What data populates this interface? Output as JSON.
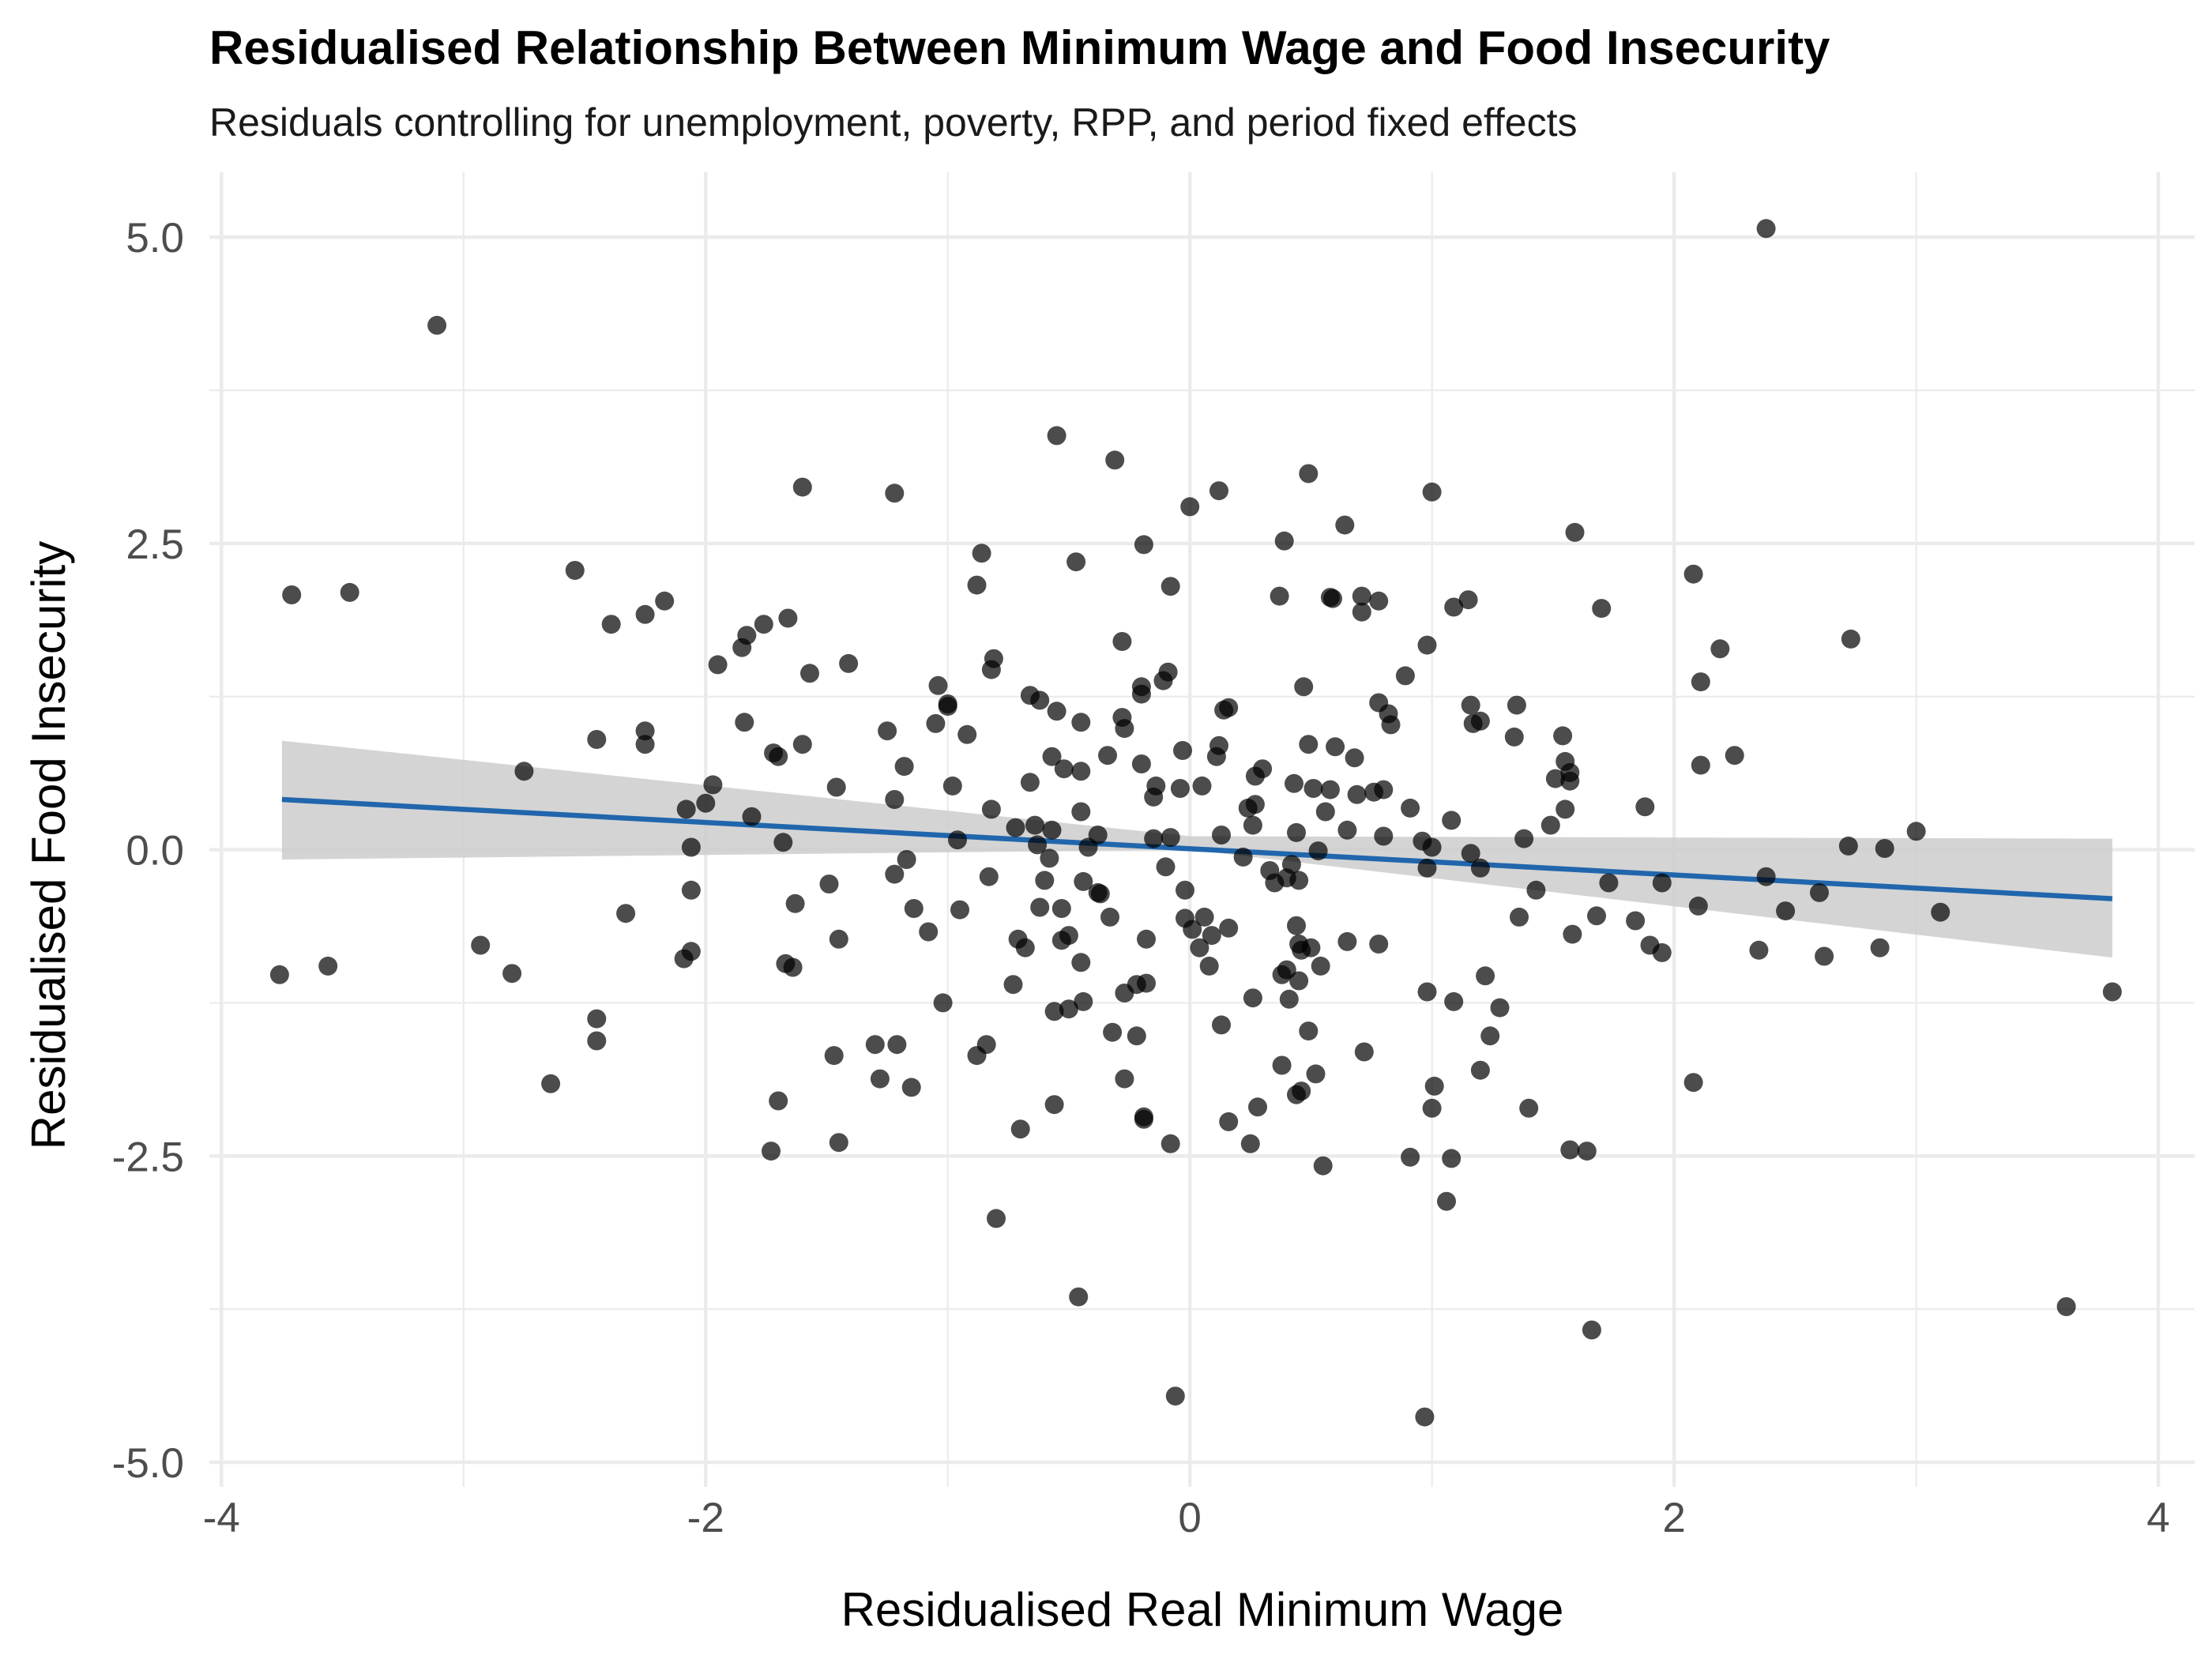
{
  "chart_data": {
    "type": "scatter",
    "title": "Residualised Relationship Between Minimum Wage and Food Insecurity",
    "subtitle": "Residuals controlling for unemployment, poverty, RPP, and period fixed effects",
    "xlabel": "Residualised Real Minimum Wage",
    "ylabel": "Residualised Food Insecurity",
    "xlim": [
      -4.05,
      4.15
    ],
    "ylim": [
      -5.2,
      5.53
    ],
    "x_ticks": [
      -4,
      -2,
      0,
      2,
      4
    ],
    "x_tick_labels": [
      "-4",
      "-2",
      "0",
      "2",
      "4"
    ],
    "y_ticks": [
      -5,
      -2.5,
      0,
      2.5,
      5
    ],
    "y_tick_labels": [
      "-5.0",
      "-2.5",
      "0.0",
      "2.5",
      "5.0"
    ],
    "x_minor": [
      -3,
      -1,
      1,
      3
    ],
    "y_minor": [
      -3.75,
      -1.25,
      1.25,
      3.75
    ],
    "point_color": "#000000",
    "point_opacity": 0.7,
    "fit_line": {
      "x": [
        -3.75,
        3.81
      ],
      "y": [
        0.41,
        -0.4
      ],
      "color": "#2166ac"
    },
    "ci_band": {
      "x": [
        -3.75,
        0.0,
        3.81
      ],
      "upper": [
        0.89,
        0.11,
        0.09
      ],
      "lower": [
        -0.08,
        0.0,
        -0.88
      ],
      "color": "#cccccc"
    },
    "points": [
      [
        2.38,
        5.07
      ],
      [
        -3.11,
        4.28
      ],
      [
        -0.55,
        3.38
      ],
      [
        -0.31,
        3.18
      ],
      [
        0.49,
        3.07
      ],
      [
        -1.6,
        2.96
      ],
      [
        -1.22,
        2.91
      ],
      [
        0.12,
        2.93
      ],
      [
        1.0,
        2.92
      ],
      [
        0.0,
        2.8
      ],
      [
        0.64,
        2.65
      ],
      [
        1.59,
        2.59
      ],
      [
        -0.19,
        2.49
      ],
      [
        0.39,
        2.52
      ],
      [
        -0.86,
        2.42
      ],
      [
        -0.47,
        2.35
      ],
      [
        -2.54,
        2.28
      ],
      [
        2.08,
        2.25
      ],
      [
        -3.71,
        2.08
      ],
      [
        -3.47,
        2.1
      ],
      [
        -0.88,
        2.16
      ],
      [
        -0.08,
        2.15
      ],
      [
        0.37,
        2.07
      ],
      [
        0.58,
        2.06
      ],
      [
        0.59,
        2.05
      ],
      [
        0.71,
        2.07
      ],
      [
        0.78,
        2.03
      ],
      [
        1.15,
        2.04
      ],
      [
        1.09,
        1.98
      ],
      [
        1.7,
        1.97
      ],
      [
        -2.17,
        2.03
      ],
      [
        -2.25,
        1.92
      ],
      [
        -2.39,
        1.84
      ],
      [
        -1.76,
        1.84
      ],
      [
        -1.66,
        1.89
      ],
      [
        0.71,
        1.94
      ],
      [
        -0.28,
        1.7
      ],
      [
        -1.83,
        1.75
      ],
      [
        -1.85,
        1.65
      ],
      [
        0.98,
        1.67
      ],
      [
        2.73,
        1.72
      ],
      [
        2.19,
        1.64
      ],
      [
        -0.81,
        1.56
      ],
      [
        -1.41,
        1.52
      ],
      [
        -1.95,
        1.51
      ],
      [
        -0.82,
        1.47
      ],
      [
        -1.57,
        1.44
      ],
      [
        -0.09,
        1.45
      ],
      [
        -0.11,
        1.38
      ],
      [
        0.89,
        1.42
      ],
      [
        2.11,
        1.37
      ],
      [
        -1.04,
        1.34
      ],
      [
        -0.2,
        1.33
      ],
      [
        -0.2,
        1.27
      ],
      [
        0.47,
        1.33
      ],
      [
        -0.66,
        1.26
      ],
      [
        -0.62,
        1.22
      ],
      [
        -1.0,
        1.19
      ],
      [
        -1.0,
        1.17
      ],
      [
        0.16,
        1.16
      ],
      [
        0.78,
        1.2
      ],
      [
        0.82,
        1.11
      ],
      [
        1.16,
        1.18
      ],
      [
        1.35,
        1.18
      ],
      [
        -0.55,
        1.13
      ],
      [
        0.14,
        1.14
      ],
      [
        -0.28,
        1.08
      ],
      [
        -0.45,
        1.04
      ],
      [
        -1.05,
        1.03
      ],
      [
        -0.27,
        0.99
      ],
      [
        -1.84,
        1.04
      ],
      [
        0.83,
        1.02
      ],
      [
        1.2,
        1.05
      ],
      [
        1.17,
        1.03
      ],
      [
        -0.92,
        0.94
      ],
      [
        -1.25,
        0.97
      ],
      [
        -2.25,
        0.97
      ],
      [
        -2.45,
        0.9
      ],
      [
        -2.25,
        0.86
      ],
      [
        -1.6,
        0.86
      ],
      [
        0.12,
        0.85
      ],
      [
        0.49,
        0.86
      ],
      [
        0.6,
        0.84
      ],
      [
        -1.72,
        0.79
      ],
      [
        -1.7,
        0.76
      ],
      [
        -0.57,
        0.76
      ],
      [
        -0.03,
        0.81
      ],
      [
        0.68,
        0.75
      ],
      [
        1.34,
        0.92
      ],
      [
        1.54,
        0.93
      ],
      [
        2.25,
        0.77
      ],
      [
        -0.34,
        0.77
      ],
      [
        -0.52,
        0.66
      ],
      [
        -0.45,
        0.64
      ],
      [
        -0.2,
        0.7
      ],
      [
        0.11,
        0.76
      ],
      [
        0.27,
        0.6
      ],
      [
        0.3,
        0.66
      ],
      [
        -1.18,
        0.68
      ],
      [
        2.11,
        0.69
      ],
      [
        1.55,
        0.72
      ],
      [
        1.57,
        0.63
      ],
      [
        -2.75,
        0.64
      ],
      [
        -1.97,
        0.53
      ],
      [
        -0.98,
        0.52
      ],
      [
        -0.66,
        0.55
      ],
      [
        -0.14,
        0.52
      ],
      [
        -0.15,
        0.43
      ],
      [
        -0.04,
        0.5
      ],
      [
        0.05,
        0.52
      ],
      [
        0.43,
        0.54
      ],
      [
        0.51,
        0.5
      ],
      [
        0.58,
        0.49
      ],
      [
        0.76,
        0.47
      ],
      [
        0.8,
        0.49
      ],
      [
        0.69,
        0.45
      ],
      [
        1.51,
        0.58
      ],
      [
        1.57,
        0.56
      ],
      [
        -1.22,
        0.41
      ],
      [
        -1.46,
        0.51
      ],
      [
        -2.0,
        0.38
      ],
      [
        -2.08,
        0.33
      ],
      [
        -1.81,
        0.27
      ],
      [
        0.27,
        0.37
      ],
      [
        0.24,
        0.34
      ],
      [
        0.56,
        0.31
      ],
      [
        0.91,
        0.34
      ],
      [
        1.88,
        0.35
      ],
      [
        1.55,
        0.33
      ],
      [
        -0.45,
        0.31
      ],
      [
        -0.82,
        0.33
      ],
      [
        -0.38,
        0.12
      ],
      [
        0.13,
        0.12
      ],
      [
        -0.57,
        0.16
      ],
      [
        -0.64,
        0.2
      ],
      [
        -0.72,
        0.18
      ],
      [
        -1.68,
        0.06
      ],
      [
        -0.96,
        0.08
      ],
      [
        -0.08,
        0.1
      ],
      [
        -0.15,
        0.09
      ],
      [
        0.26,
        0.2
      ],
      [
        0.44,
        0.14
      ],
      [
        0.65,
        0.16
      ],
      [
        0.8,
        0.11
      ],
      [
        0.96,
        0.07
      ],
      [
        1.0,
        0.02
      ],
      [
        1.08,
        0.24
      ],
      [
        1.38,
        0.09
      ],
      [
        1.49,
        0.2
      ],
      [
        2.72,
        0.03
      ],
      [
        2.87,
        0.01
      ],
      [
        3.0,
        0.15
      ],
      [
        -2.06,
        0.02
      ],
      [
        -1.17,
        -0.08
      ],
      [
        -0.58,
        -0.07
      ],
      [
        -0.63,
        0.04
      ],
      [
        -0.42,
        0.02
      ],
      [
        0.22,
        -0.06
      ],
      [
        0.42,
        -0.12
      ],
      [
        0.53,
        -0.01
      ],
      [
        0.98,
        -0.15
      ],
      [
        1.16,
        -0.03
      ],
      [
        1.2,
        -0.15
      ],
      [
        -1.22,
        -0.2
      ],
      [
        -0.1,
        -0.14
      ],
      [
        0.33,
        -0.17
      ],
      [
        0.4,
        -0.23
      ],
      [
        0.35,
        -0.27
      ],
      [
        0.45,
        -0.25
      ],
      [
        -0.83,
        -0.22
      ],
      [
        -0.6,
        -0.25
      ],
      [
        -0.44,
        -0.26
      ],
      [
        -0.38,
        -0.35
      ],
      [
        -0.37,
        -0.36
      ],
      [
        -0.33,
        -0.55
      ],
      [
        -0.02,
        -0.33
      ],
      [
        -0.02,
        -0.56
      ],
      [
        0.06,
        -0.55
      ],
      [
        1.43,
        -0.33
      ],
      [
        1.73,
        -0.27
      ],
      [
        1.95,
        -0.27
      ],
      [
        2.38,
        -0.22
      ],
      [
        2.6,
        -0.35
      ],
      [
        1.36,
        -0.55
      ],
      [
        1.58,
        -0.69
      ],
      [
        1.68,
        -0.54
      ],
      [
        1.84,
        -0.58
      ],
      [
        2.1,
        -0.46
      ],
      [
        2.46,
        -0.5
      ],
      [
        3.1,
        -0.51
      ],
      [
        -2.06,
        -0.33
      ],
      [
        -1.49,
        -0.28
      ],
      [
        -1.63,
        -0.44
      ],
      [
        -1.14,
        -0.48
      ],
      [
        -0.95,
        -0.49
      ],
      [
        -2.33,
        -0.52
      ],
      [
        -1.08,
        -0.67
      ],
      [
        -0.71,
        -0.73
      ],
      [
        -0.68,
        -0.8
      ],
      [
        -0.62,
        -0.47
      ],
      [
        -0.53,
        -0.48
      ],
      [
        -0.5,
        -0.7
      ],
      [
        -0.53,
        -0.74
      ],
      [
        -0.18,
        -0.73
      ],
      [
        0.01,
        -0.65
      ],
      [
        0.09,
        -0.7
      ],
      [
        0.16,
        -0.64
      ],
      [
        0.44,
        -0.62
      ],
      [
        0.45,
        -0.77
      ],
      [
        0.46,
        -0.82
      ],
      [
        0.5,
        -0.8
      ],
      [
        0.65,
        -0.75
      ],
      [
        0.78,
        -0.77
      ],
      [
        1.9,
        -0.78
      ],
      [
        1.95,
        -0.84
      ],
      [
        2.35,
        -0.82
      ],
      [
        2.62,
        -0.87
      ],
      [
        2.85,
        -0.8
      ],
      [
        -1.45,
        -0.73
      ],
      [
        -2.06,
        -0.83
      ],
      [
        -2.09,
        -0.89
      ],
      [
        -1.67,
        -0.93
      ],
      [
        -1.64,
        -0.96
      ],
      [
        -2.93,
        -0.78
      ],
      [
        -3.56,
        -0.95
      ],
      [
        -3.76,
        -1.02
      ],
      [
        -2.8,
        -1.01
      ],
      [
        0.54,
        -0.95
      ],
      [
        0.4,
        -0.98
      ],
      [
        0.38,
        -1.02
      ],
      [
        0.45,
        -1.07
      ],
      [
        0.08,
        -0.95
      ],
      [
        0.04,
        -0.8
      ],
      [
        -0.45,
        -0.92
      ],
      [
        -0.73,
        -1.1
      ],
      [
        -0.18,
        -1.09
      ],
      [
        -0.22,
        -1.1
      ],
      [
        -0.27,
        -1.17
      ],
      [
        0.26,
        -1.21
      ],
      [
        -1.02,
        -1.25
      ],
      [
        -0.44,
        -1.24
      ],
      [
        -0.56,
        -1.32
      ],
      [
        -0.5,
        -1.3
      ],
      [
        0.41,
        -1.22
      ],
      [
        0.98,
        -1.16
      ],
      [
        1.09,
        -1.24
      ],
      [
        1.22,
        -1.03
      ],
      [
        1.28,
        -1.29
      ],
      [
        3.81,
        -1.16
      ],
      [
        -2.45,
        -1.38
      ],
      [
        -2.45,
        -1.56
      ],
      [
        -1.3,
        -1.59
      ],
      [
        -1.21,
        -1.59
      ],
      [
        -0.84,
        -1.59
      ],
      [
        -0.88,
        -1.68
      ],
      [
        -1.47,
        -1.68
      ],
      [
        -0.32,
        -1.49
      ],
      [
        -0.22,
        -1.52
      ],
      [
        0.13,
        -1.43
      ],
      [
        0.49,
        -1.48
      ],
      [
        0.72,
        -1.65
      ],
      [
        1.24,
        -1.52
      ],
      [
        -2.64,
        -1.91
      ],
      [
        -1.28,
        -1.87
      ],
      [
        -1.15,
        -1.94
      ],
      [
        -0.27,
        -1.87
      ],
      [
        0.38,
        -1.76
      ],
      [
        0.52,
        -1.83
      ],
      [
        0.46,
        -1.97
      ],
      [
        0.44,
        -2.0
      ],
      [
        1.01,
        -1.93
      ],
      [
        1.2,
        -1.8
      ],
      [
        2.08,
        -1.9
      ],
      [
        -1.7,
        -2.05
      ],
      [
        -0.7,
        -2.28
      ],
      [
        -0.56,
        -2.08
      ],
      [
        -0.19,
        -2.2
      ],
      [
        -0.19,
        -2.18
      ],
      [
        0.16,
        -2.22
      ],
      [
        0.28,
        -2.1
      ],
      [
        1.0,
        -2.11
      ],
      [
        1.4,
        -2.11
      ],
      [
        -1.73,
        -2.46
      ],
      [
        -1.45,
        -2.39
      ],
      [
        -0.08,
        -2.4
      ],
      [
        0.25,
        -2.4
      ],
      [
        0.55,
        -2.58
      ],
      [
        0.91,
        -2.51
      ],
      [
        1.08,
        -2.52
      ],
      [
        1.57,
        -2.45
      ],
      [
        1.64,
        -2.46
      ],
      [
        1.06,
        -2.87
      ],
      [
        -0.8,
        -3.01
      ],
      [
        -0.46,
        -3.65
      ],
      [
        1.66,
        -3.92
      ],
      [
        3.62,
        -3.73
      ],
      [
        -0.06,
        -4.46
      ],
      [
        0.97,
        -4.63
      ]
    ]
  }
}
